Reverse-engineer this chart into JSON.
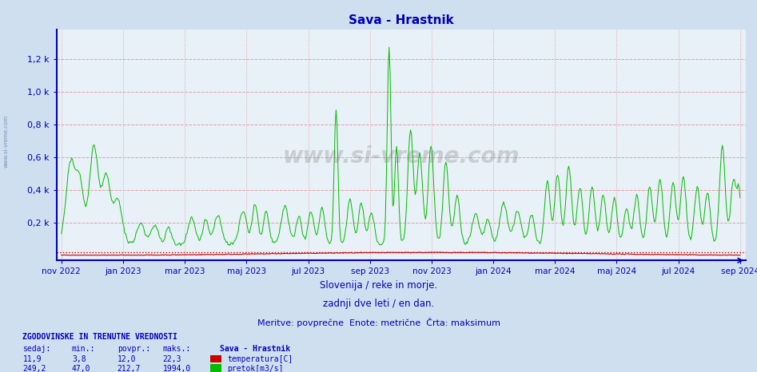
{
  "title": "Sava - Hrastnik",
  "bg_color": "#d0dff0",
  "plot_bg_color": "#e8f0f8",
  "subtitle_lines": [
    "Slovenija / reke in morje.",
    "zadnji dve leti / en dan.",
    "Meritve: povprečne  Enote: metrične  Črta: maksimum"
  ],
  "xlabel_ticks": [
    "nov 2022",
    "jan 2023",
    "mar 2023",
    "maj 2023",
    "jul 2023",
    "sep 2023",
    "nov 2023",
    "jan 2024",
    "mar 2024",
    "maj 2024",
    "jul 2024",
    "sep 2024"
  ],
  "ytick_vals": [
    200,
    400,
    600,
    800,
    1000,
    1200
  ],
  "ytick_labels": [
    "0,2 k",
    "0,4 k",
    "0,6 k",
    "0,8 k",
    "1,0 k",
    "1,2 k"
  ],
  "ymax": 1380,
  "ymin": -28,
  "temp_color": "#cc0000",
  "flow_color": "#00bb00",
  "max_flow": 1994.0,
  "max_temp": 22.3,
  "watermark": "www.si-vreme.com",
  "footer_title": "ZGODOVINSKE IN TRENUTNE VREDNOSTI",
  "footer_cols": [
    "sedaj:",
    "min.:",
    "povpr.:",
    "maks.:"
  ],
  "footer_row1": [
    "11,9",
    "3,8",
    "12,0",
    "22,3"
  ],
  "footer_row2": [
    "249,2",
    "47,0",
    "212,7",
    "1994,0"
  ],
  "footer_label": "Sava - Hrastnik",
  "footer_temp_label": "temperatura[C]",
  "footer_flow_label": "pretok[m3/s]",
  "n_points": 730,
  "axis_color": "#0000bb",
  "title_color": "#0000bb",
  "text_color": "#0000bb",
  "grid_h_color": "#e0a0a0",
  "grid_v_color": "#e0a0a0",
  "side_label": "www.si-vreme.com"
}
